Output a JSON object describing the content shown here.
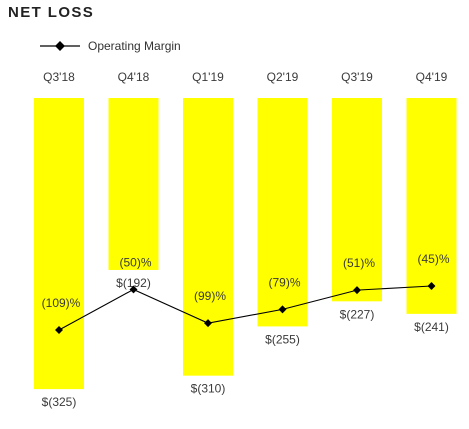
{
  "chart_data": {
    "type": "bar+line",
    "title": "NET LOSS",
    "categories": [
      "Q3'18",
      "Q4'18",
      "Q1'19",
      "Q2'19",
      "Q3'19",
      "Q4'19"
    ],
    "series": [
      {
        "name": "Net Loss",
        "kind": "bar",
        "values": [
          -325,
          -192,
          -310,
          -255,
          -227,
          -241
        ],
        "labels": [
          "$(325)",
          "$(192)",
          "$(310)",
          "$(255)",
          "$(227)",
          "$(241)"
        ]
      },
      {
        "name": "Operating Margin",
        "kind": "line",
        "values": [
          -109,
          -50,
          -99,
          -79,
          -51,
          -45
        ],
        "labels": [
          "(109)%",
          "(50)%",
          "(99)%",
          "(79)%",
          "(51)%",
          "(45)%"
        ]
      }
    ],
    "legend": {
      "label": "Operating Margin",
      "placement": "top-left"
    },
    "grid": false,
    "colors": {
      "bar": "#ffff00",
      "line": "#000000",
      "text": "#3a3a3a"
    }
  }
}
